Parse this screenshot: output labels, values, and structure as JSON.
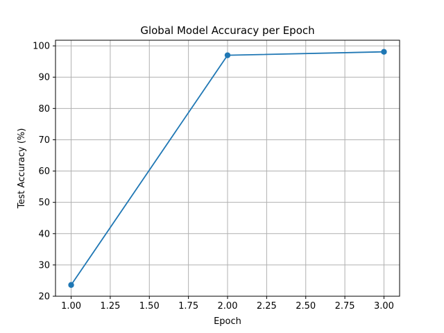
{
  "chart_data": {
    "type": "line",
    "title": "Global Model Accuracy per Epoch",
    "xlabel": "Epoch",
    "ylabel": "Test Accuracy (%)",
    "xlim": [
      0.9,
      3.1
    ],
    "ylim": [
      20.0,
      101.8
    ],
    "x_ticks": [
      1.0,
      1.25,
      1.5,
      1.75,
      2.0,
      2.25,
      2.5,
      2.75,
      3.0
    ],
    "x_tick_labels": [
      "1.00",
      "1.25",
      "1.50",
      "1.75",
      "2.00",
      "2.25",
      "2.50",
      "2.75",
      "3.00"
    ],
    "y_ticks": [
      20,
      30,
      40,
      50,
      60,
      70,
      80,
      90,
      100
    ],
    "y_tick_labels": [
      "20",
      "30",
      "40",
      "50",
      "60",
      "70",
      "80",
      "90",
      "100"
    ],
    "grid": true,
    "marker": "circle",
    "series": [
      {
        "color": "#1f77b4",
        "x": [
          1,
          2,
          3
        ],
        "y": [
          23.6,
          97.0,
          98.1
        ]
      }
    ]
  }
}
